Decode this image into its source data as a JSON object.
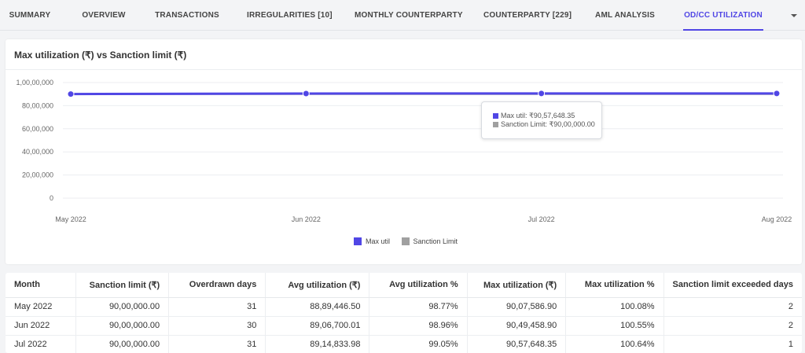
{
  "tabs": [
    {
      "label": "SUMMARY",
      "active": false
    },
    {
      "label": "OVERVIEW",
      "active": false
    },
    {
      "label": "TRANSACTIONS",
      "active": false
    },
    {
      "label": "IRREGULARITIES [10]",
      "active": false
    },
    {
      "label": "MONTHLY COUNTERPARTY",
      "active": false
    },
    {
      "label": "COUNTERPARTY [229]",
      "active": false
    },
    {
      "label": "AML ANALYSIS",
      "active": false
    },
    {
      "label": "OD/CC UTILIZATION",
      "active": true
    }
  ],
  "tab_more_icon": "chevron-down-icon",
  "chart_card": {
    "title": "Max utilization (₹) vs Sanction limit (₹)"
  },
  "chart_data": {
    "type": "line",
    "title": "Max utilization (₹) vs Sanction limit (₹)",
    "x": [
      "May 2022",
      "Jun 2022",
      "Jul 2022",
      "Aug 2022"
    ],
    "y_ticks": [
      "0",
      "20,00,000",
      "40,00,000",
      "60,00,000",
      "80,00,000",
      "1,00,00,000"
    ],
    "ylim": [
      0,
      10000000
    ],
    "grid": true,
    "legend_position": "bottom",
    "series": [
      {
        "name": "Max util",
        "color": "#5046e5",
        "values": [
          9007586.9,
          9049458.9,
          9057648.35,
          9057648.35
        ]
      },
      {
        "name": "Sanction Limit",
        "color": "#a0a0a0",
        "values": [
          9000000,
          9000000,
          9000000,
          9000000
        ]
      }
    ],
    "tooltip": {
      "max_util": "Max util: ₹90,57,648.35",
      "sanction_limit": "Sanction Limit: ₹90,00,000.00"
    }
  },
  "table": {
    "headers": [
      "Month",
      "Sanction limit (₹)",
      "Overdrawn days",
      "Avg utilization (₹)",
      "Avg utilization %",
      "Max utilization (₹)",
      "Max utilization %",
      "Sanction limit exceeded days"
    ],
    "rows": [
      [
        "May 2022",
        "90,00,000.00",
        "31",
        "88,89,446.50",
        "98.77%",
        "90,07,586.90",
        "100.08%",
        "2"
      ],
      [
        "Jun 2022",
        "90,00,000.00",
        "30",
        "89,06,700.01",
        "98.96%",
        "90,49,458.90",
        "100.55%",
        "2"
      ],
      [
        "Jul 2022",
        "90,00,000.00",
        "31",
        "89,14,833.98",
        "99.05%",
        "90,57,648.35",
        "100.64%",
        "1"
      ]
    ]
  }
}
